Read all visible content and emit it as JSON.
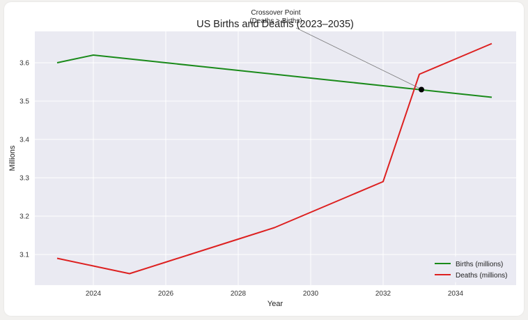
{
  "chart_data": {
    "type": "line",
    "title": "US Births and Deaths (2023–2035)",
    "xlabel": "Year",
    "ylabel": "Millions",
    "x": [
      2023,
      2024,
      2025,
      2026,
      2027,
      2028,
      2029,
      2030,
      2031,
      2032,
      2033,
      2034,
      2035
    ],
    "series": [
      {
        "name": "Births (millions)",
        "color": "#1a8a1a",
        "values": [
          3.6,
          3.62,
          3.61,
          3.6,
          3.59,
          3.58,
          3.57,
          3.56,
          3.55,
          3.54,
          3.53,
          3.52,
          3.51
        ]
      },
      {
        "name": "Deaths (millions)",
        "color": "#dd2020",
        "values": [
          3.09,
          3.07,
          3.05,
          3.08,
          3.11,
          3.14,
          3.17,
          3.21,
          3.25,
          3.29,
          3.57,
          3.61,
          3.65
        ]
      }
    ],
    "xticks": [
      "2024",
      "2026",
      "2028",
      "2030",
      "2032",
      "2034"
    ],
    "yticks": [
      "3.1",
      "3.2",
      "3.3",
      "3.4",
      "3.5",
      "3.6"
    ],
    "xlim": [
      2022.4,
      2035.7
    ],
    "ylim": [
      3.018,
      3.682
    ],
    "grid": true,
    "legend_position": "lower right",
    "annotations": [
      {
        "text": "Crossover Point\n(Deaths > Births)",
        "x": 2033,
        "y": 3.53,
        "line1": "Crossover Point",
        "line2": "(Deaths > Births)"
      }
    ]
  }
}
